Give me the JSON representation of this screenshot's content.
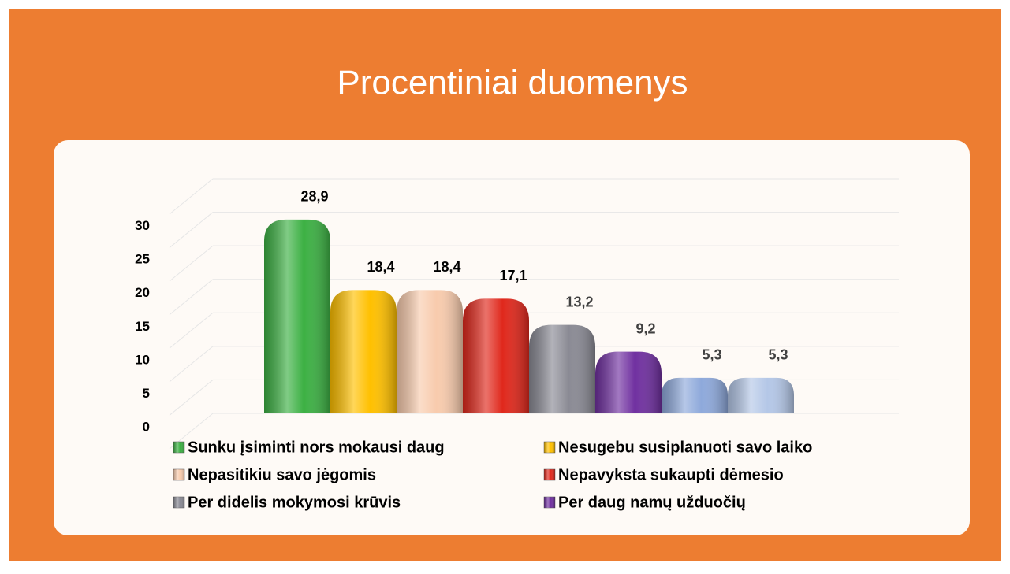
{
  "chart_data": {
    "type": "bar",
    "title": "Procentiniai duomenys",
    "ylim": [
      0,
      35
    ],
    "yticks": [
      0,
      5,
      10,
      15,
      20,
      25,
      30
    ],
    "grid": true,
    "series": [
      {
        "name": "Sunku įsiminti nors mokausi daug",
        "color": "#3cb043",
        "values": [
          28.9
        ],
        "value_labels": [
          "28,9"
        ]
      },
      {
        "name": "Nesugebu susiplanuoti savo laiko",
        "color": "#ffc000",
        "values": [
          18.4
        ],
        "value_labels": [
          "18,4"
        ]
      },
      {
        "name": "Nepasitikiu savo jėgomis",
        "color": "#f8cbad",
        "values": [
          18.4
        ],
        "value_labels": [
          "18,4"
        ]
      },
      {
        "name": "Nepavyksta sukaupti dėmesio",
        "color": "#e0281c",
        "values": [
          17.1
        ],
        "value_labels": [
          "17,1"
        ]
      },
      {
        "name": "Per didelis mokymosi krūvis",
        "color": "#8a8a94",
        "values": [
          13.2
        ],
        "value_labels": [
          "13,2"
        ]
      },
      {
        "name": "Per daug namų užduočių",
        "color": "#7030a0",
        "values": [
          9.2
        ],
        "value_labels": [
          "9,2"
        ]
      },
      {
        "color": "#8ea9db",
        "values": [
          5.3
        ],
        "value_labels": [
          "5,3"
        ]
      },
      {
        "color": "#b4c7e7",
        "values": [
          5.3
        ],
        "value_labels": [
          "5,3"
        ]
      }
    ]
  }
}
